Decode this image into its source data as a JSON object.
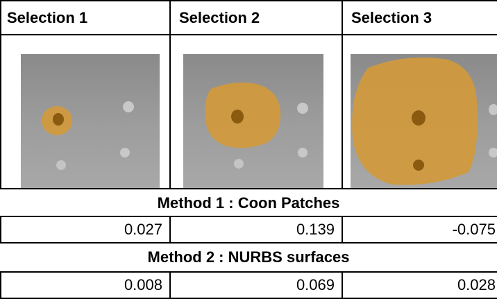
{
  "table": {
    "header": [
      "Selection 1",
      "Selection 2",
      "Selection 3"
    ],
    "sections": [
      {
        "title": "Method 1 : Coon Patches",
        "values": [
          0.027,
          0.139,
          -0.075
        ]
      },
      {
        "title": "Method 2 : NURBS surfaces",
        "values": [
          0.008,
          0.069,
          0.028
        ]
      }
    ]
  }
}
